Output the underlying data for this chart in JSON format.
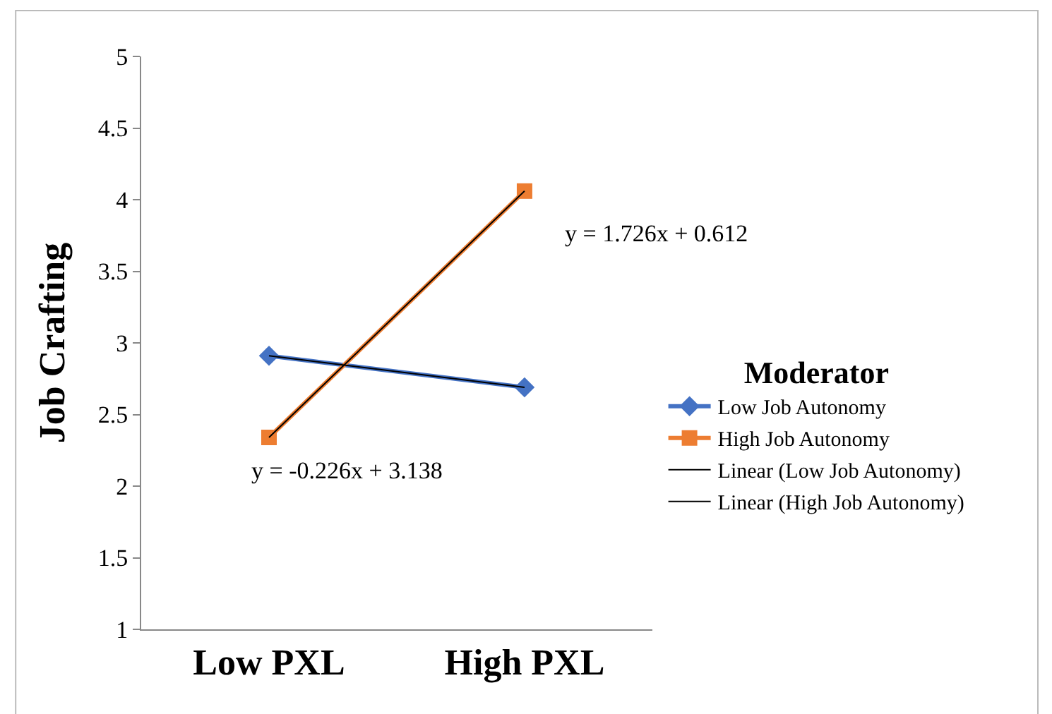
{
  "chart_data": {
    "type": "line",
    "ylabel": "Job Crafting",
    "legend_title": "Moderator",
    "categories": [
      "Low PXL",
      "High PXL"
    ],
    "series": [
      {
        "name": "Low Job Autonomy",
        "color": "#4472c4",
        "values": [
          2.91,
          2.69
        ],
        "marker": "diamond"
      },
      {
        "name": "High Job Autonomy",
        "color": "#ed7d31",
        "values": [
          2.34,
          4.06
        ],
        "marker": "square"
      },
      {
        "name": "Linear (Low Job Autonomy)",
        "color": "#000000",
        "values": [
          2.91,
          2.69
        ],
        "marker": "none"
      },
      {
        "name": "Linear (High Job Autonomy)",
        "color": "#000000",
        "values": [
          2.34,
          4.06
        ],
        "marker": "none"
      }
    ],
    "annotations": [
      "y = 1.726x + 0.612",
      "y = -0.226x + 3.138"
    ],
    "ylim": [
      1,
      5
    ],
    "yticks": [
      1,
      1.5,
      2,
      2.5,
      3,
      3.5,
      4,
      4.5,
      5
    ],
    "legend": "right"
  }
}
